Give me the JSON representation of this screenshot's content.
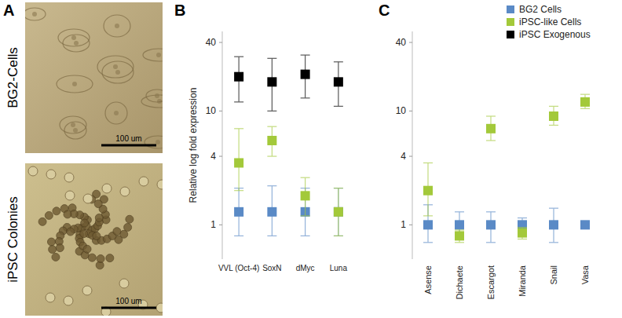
{
  "figure": {
    "panel_labels": [
      "A",
      "B",
      "C"
    ],
    "images": [
      {
        "label": "BG2-Cells",
        "scale_bar": "100 um"
      },
      {
        "label": "iPSC Colonies",
        "scale_bar": "100 um"
      }
    ]
  },
  "chart_data": [
    {
      "type": "scatter",
      "y_label": "Relative log fold expression",
      "categories": [
        "VVL (Oct-4)",
        "SoxN",
        "dMyc",
        "Luna"
      ],
      "log": "y",
      "ylim": [
        0.5,
        50
      ],
      "yticks": [
        1,
        4,
        10,
        40
      ],
      "marker": "square",
      "legend": "top-right",
      "series": [
        {
          "name": "BG2 Cells",
          "color": "#5a8ac6",
          "values": [
            1.3,
            1.3,
            1.3,
            1.3
          ],
          "error_low": [
            0.5,
            0.5,
            0.5,
            0.5
          ],
          "error_high": [
            0.8,
            0.9,
            0.8,
            0.8
          ]
        },
        {
          "name": "iPSC-like Cells",
          "color": "#a3c93a",
          "values": [
            3.5,
            5.5,
            1.8,
            1.3
          ],
          "error_low": [
            1.5,
            1.5,
            0.6,
            0.5
          ],
          "error_high": [
            3.5,
            1.8,
            0.8,
            0.8
          ]
        },
        {
          "name": "iPSC Exogenous",
          "color": "#000000",
          "values": [
            20,
            18,
            21,
            18
          ],
          "error_low": [
            8,
            8,
            8,
            7
          ],
          "error_high": [
            10,
            11,
            10,
            9
          ]
        }
      ]
    },
    {
      "type": "scatter",
      "categories": [
        "Asense",
        "Dichaete",
        "Escargot",
        "Miranda",
        "Snail",
        "Vasa"
      ],
      "log": "y",
      "ylim": [
        0.5,
        50
      ],
      "yticks": [
        1,
        4,
        10,
        40
      ],
      "marker": "square",
      "series": [
        {
          "color": "#5a8ac6",
          "values": [
            1,
            1,
            1,
            1,
            1,
            1
          ],
          "error_low": [
            0.3,
            0.2,
            0.3,
            0.15,
            0.3,
            0.05
          ],
          "error_high": [
            0.5,
            0.3,
            0.3,
            0.15,
            0.4,
            0.05
          ]
        },
        {
          "color": "#a3c93a",
          "values": [
            2,
            0.8,
            7,
            0.85,
            9,
            12
          ],
          "error_low": [
            0.8,
            0.1,
            1.5,
            0.1,
            1.5,
            1.5
          ],
          "error_high": [
            1.5,
            0.1,
            2,
            0.1,
            2,
            2
          ]
        }
      ]
    }
  ]
}
